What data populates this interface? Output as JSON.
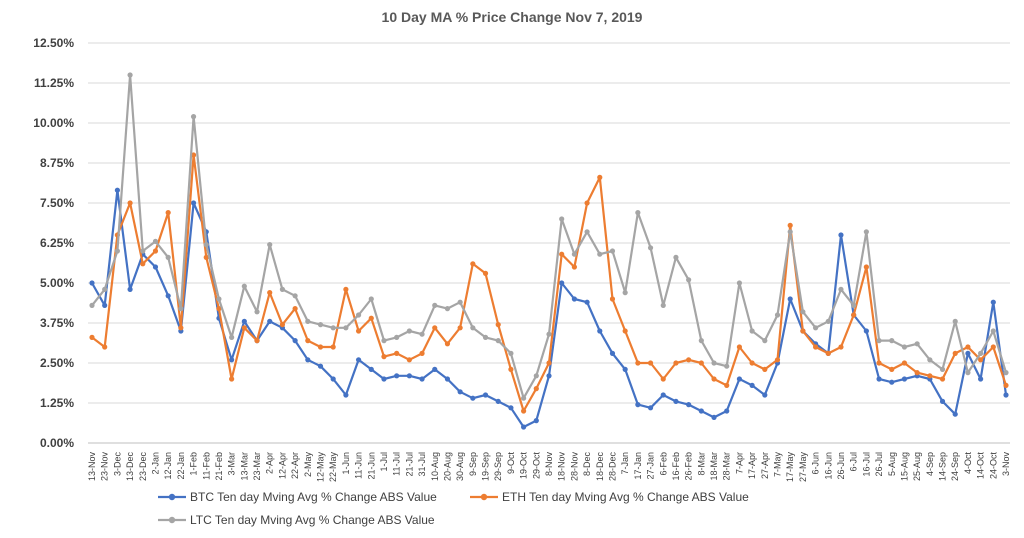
{
  "chart_data": {
    "type": "line",
    "title": "10 Day MA % Price Change Nov 7, 2019",
    "xlabel": "",
    "ylabel": "",
    "ylim": [
      0,
      12.5
    ],
    "y_ticks": [
      "0.00%",
      "1.25%",
      "2.50%",
      "3.75%",
      "5.00%",
      "6.25%",
      "7.50%",
      "8.75%",
      "10.00%",
      "11.25%",
      "12.50%"
    ],
    "y_tick_values": [
      0,
      1.25,
      2.5,
      3.75,
      5,
      6.25,
      7.5,
      8.75,
      10,
      11.25,
      12.5
    ],
    "grid": true,
    "legend_position": "bottom",
    "categories": [
      "13-Nov",
      "23-Nov",
      "3-Dec",
      "13-Dec",
      "23-Dec",
      "2-Jan",
      "12-Jan",
      "22-Jan",
      "1-Feb",
      "11-Feb",
      "21-Feb",
      "3-Mar",
      "13-Mar",
      "23-Mar",
      "2-Apr",
      "12-Apr",
      "22-Apr",
      "2-May",
      "12-May",
      "22-May",
      "1-Jun",
      "11-Jun",
      "21-Jun",
      "1-Jul",
      "11-Jul",
      "21-Jul",
      "31-Jul",
      "10-Aug",
      "20-Aug",
      "30-Aug",
      "9-Sep",
      "19-Sep",
      "29-Sep",
      "9-Oct",
      "19-Oct",
      "29-Oct",
      "8-Nov",
      "18-Nov",
      "28-Nov",
      "8-Dec",
      "18-Dec",
      "28-Dec",
      "7-Jan",
      "17-Jan",
      "27-Jan",
      "6-Feb",
      "16-Feb",
      "26-Feb",
      "8-Mar",
      "18-Mar",
      "28-Mar",
      "7-Apr",
      "17-Apr",
      "27-Apr",
      "7-May",
      "17-May",
      "27-May",
      "6-Jun",
      "16-Jun",
      "26-Jun",
      "6-Jul",
      "16-Jul",
      "26-Jul",
      "5-Aug",
      "15-Aug",
      "25-Aug",
      "4-Sep",
      "14-Sep",
      "24-Sep",
      "4-Oct",
      "14-Oct",
      "24-Oct",
      "3-Nov"
    ],
    "series": [
      {
        "name": "BTC Ten day Mving Avg % Change ABS Value",
        "color": "#4472c4",
        "values": [
          5.0,
          4.3,
          7.9,
          4.8,
          5.9,
          5.5,
          4.6,
          3.5,
          7.5,
          6.6,
          3.9,
          2.6,
          3.8,
          3.2,
          3.8,
          3.6,
          3.2,
          2.6,
          2.4,
          2.0,
          1.5,
          2.6,
          2.3,
          2.0,
          2.1,
          2.1,
          2.0,
          2.3,
          2.0,
          1.6,
          1.4,
          1.5,
          1.3,
          1.1,
          0.5,
          0.7,
          2.1,
          5.0,
          4.5,
          4.4,
          3.5,
          2.8,
          2.3,
          1.2,
          1.1,
          1.5,
          1.3,
          1.2,
          1.0,
          0.8,
          1.0,
          2.0,
          1.8,
          1.5,
          2.5,
          4.5,
          3.5,
          3.1,
          2.8,
          6.5,
          4.0,
          3.5,
          2.0,
          1.9,
          2.0,
          2.1,
          2.0,
          1.3,
          0.9,
          2.8,
          2.0,
          4.4,
          1.5
        ]
      },
      {
        "name": "ETH Ten day Mving Avg % Change ABS Value",
        "color": "#ed7d31",
        "values": [
          3.3,
          3.0,
          6.5,
          7.5,
          5.6,
          6.0,
          7.2,
          3.6,
          9.0,
          5.8,
          4.2,
          2.0,
          3.6,
          3.2,
          4.7,
          3.7,
          4.2,
          3.2,
          3.0,
          3.0,
          4.8,
          3.5,
          3.9,
          2.7,
          2.8,
          2.6,
          2.8,
          3.6,
          3.1,
          3.6,
          5.6,
          5.3,
          3.7,
          2.3,
          1.0,
          1.7,
          2.5,
          5.9,
          5.5,
          7.5,
          8.3,
          4.5,
          3.5,
          2.5,
          2.5,
          2.0,
          2.5,
          2.6,
          2.5,
          2.0,
          1.8,
          3.0,
          2.5,
          2.3,
          2.6,
          6.8,
          3.5,
          3.0,
          2.8,
          3.0,
          4.0,
          5.5,
          2.5,
          2.3,
          2.5,
          2.2,
          2.1,
          2.0,
          2.8,
          3.0,
          2.6,
          3.0,
          1.8
        ]
      },
      {
        "name": "LTC Ten day Mving Avg % Change ABS Value",
        "color": "#a5a5a5",
        "values": [
          4.3,
          4.8,
          6.0,
          11.5,
          6.0,
          6.3,
          5.8,
          4.2,
          10.2,
          6.2,
          4.5,
          3.3,
          4.9,
          4.1,
          6.2,
          4.8,
          4.6,
          3.8,
          3.7,
          3.6,
          3.6,
          4.0,
          4.5,
          3.2,
          3.3,
          3.5,
          3.4,
          4.3,
          4.2,
          4.4,
          3.6,
          3.3,
          3.2,
          2.8,
          1.4,
          2.1,
          3.4,
          7.0,
          5.9,
          6.6,
          5.9,
          6.0,
          4.7,
          7.2,
          6.1,
          4.3,
          5.8,
          5.1,
          3.2,
          2.5,
          2.4,
          5.0,
          3.5,
          3.2,
          4.0,
          6.6,
          4.1,
          3.6,
          3.8,
          4.8,
          4.3,
          6.6,
          3.2,
          3.2,
          3.0,
          3.1,
          2.6,
          2.3,
          3.8,
          2.2,
          2.8,
          3.5,
          2.2
        ]
      }
    ]
  }
}
